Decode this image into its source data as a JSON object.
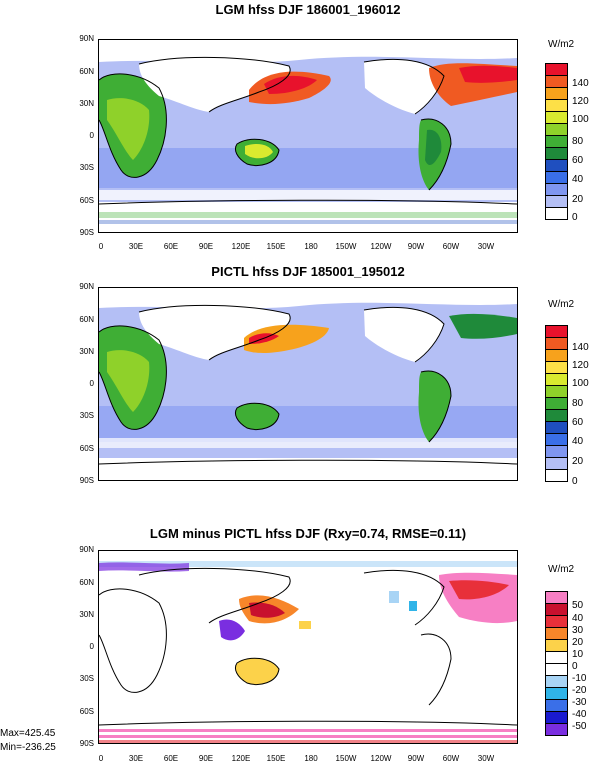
{
  "panels": [
    {
      "title": "LGM hfss DJF 186001_196012",
      "units": "W/m2",
      "legend": {
        "colors": [
          "#e8122c",
          "#f05a22",
          "#f7a21c",
          "#fde047",
          "#d9ea2f",
          "#8fd12a",
          "#3fae35",
          "#1f8a3a",
          "#1f4fbf",
          "#3a6fe8",
          "#7f96f0",
          "#b4bff5",
          "#ffffff"
        ],
        "labels": [
          "140",
          "120",
          "100",
          "80",
          "60",
          "40",
          "20",
          "0"
        ]
      }
    },
    {
      "title": "PICTL hfss DJF 185001_195012",
      "units": "W/m2",
      "legend": {
        "colors": [
          "#e8122c",
          "#f05a22",
          "#f7a21c",
          "#fde047",
          "#d9ea2f",
          "#8fd12a",
          "#3fae35",
          "#1f8a3a",
          "#1f4fbf",
          "#3a6fe8",
          "#7f96f0",
          "#b4bff5",
          "#ffffff"
        ],
        "labels": [
          "140",
          "120",
          "100",
          "80",
          "60",
          "40",
          "20",
          "0"
        ]
      }
    },
    {
      "title": "LGM minus PICTL hfss DJF (Rxy=0.74, RMSE=0.11)",
      "units": "W/m2",
      "legend": {
        "colors": [
          "#f77fc4",
          "#c8102e",
          "#e8303a",
          "#f7862a",
          "#fcd24a",
          "#ffffff",
          "#ffffff",
          "#a8d4f5",
          "#30b4e8",
          "#3a6fe8",
          "#1a1ad0",
          "#7a2ee0"
        ],
        "labels": [
          "50",
          "40",
          "30",
          "20",
          "10",
          "0",
          "-10",
          "-20",
          "-30",
          "-40",
          "-50"
        ]
      }
    }
  ],
  "lat_labels": [
    "90N",
    "60N",
    "30N",
    "0",
    "30S",
    "60S",
    "90S"
  ],
  "lon_labels": [
    "0",
    "30E",
    "60E",
    "90E",
    "120E",
    "150E",
    "180",
    "150W",
    "120W",
    "90W",
    "60W",
    "30W"
  ],
  "stats": {
    "max": "Max=425.45",
    "min": "Min=-236.25"
  }
}
